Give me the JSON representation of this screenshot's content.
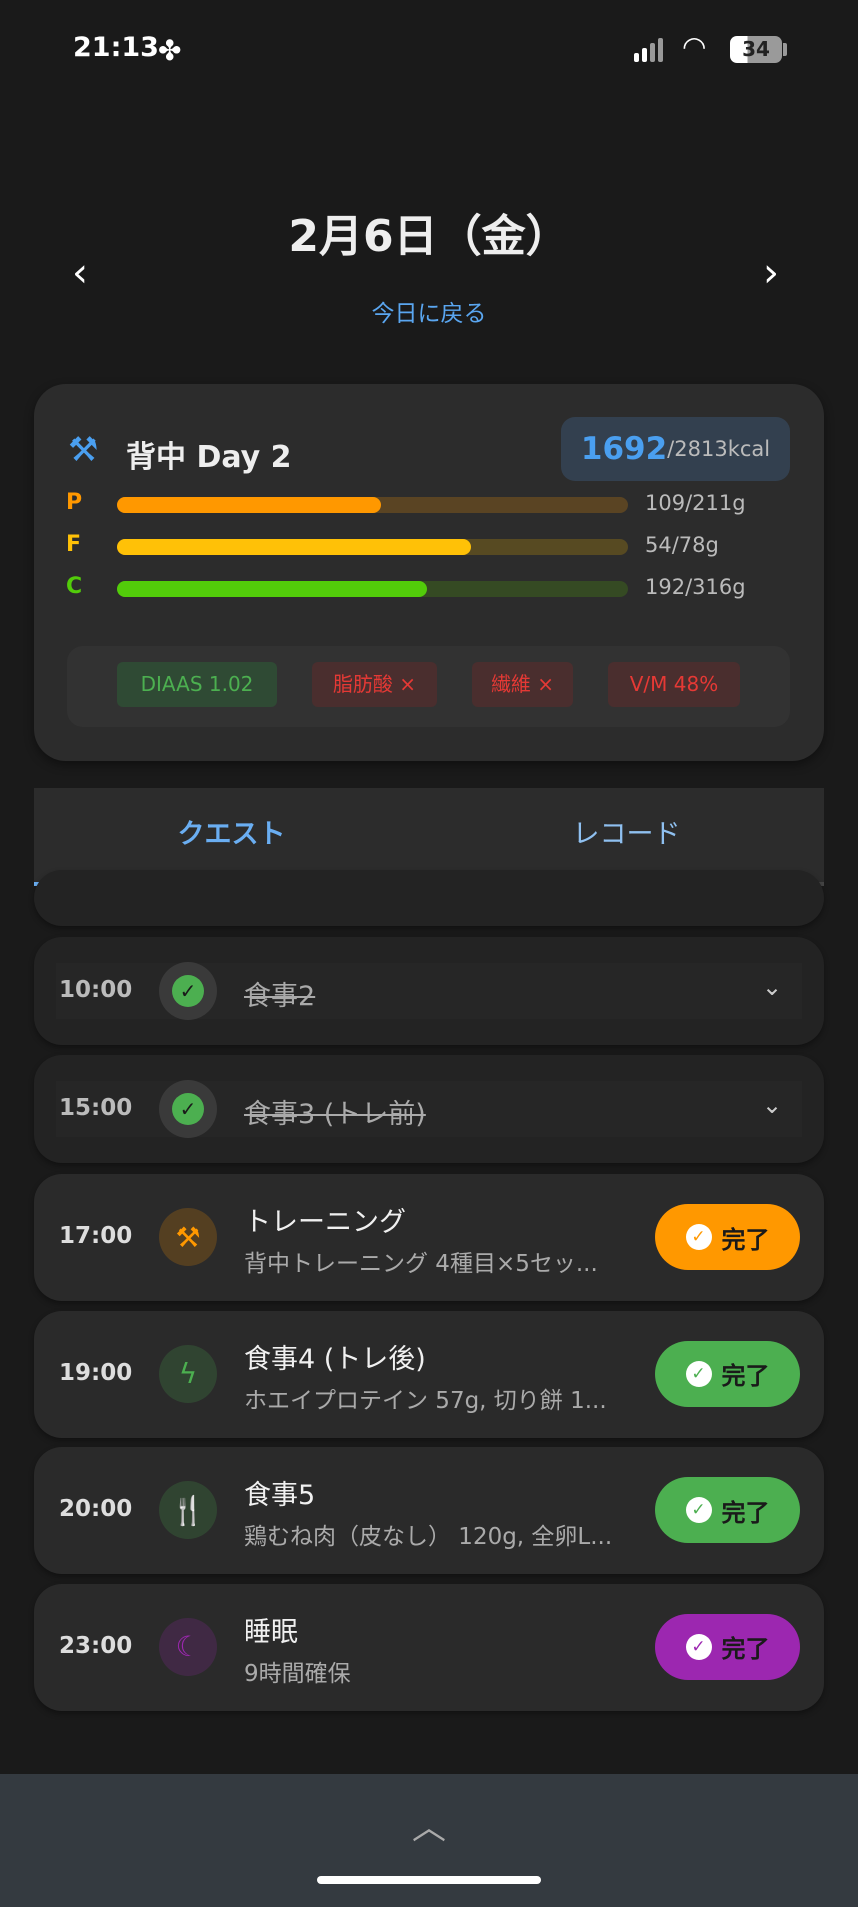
{
  "status": {
    "time": "21:13",
    "battery": "34"
  },
  "header": {
    "date": "2月6日（金）",
    "today_link": "今日に戻る"
  },
  "summary": {
    "title": "背中 Day 2",
    "kcal_current": "1692",
    "kcal_target": "/2813kcal",
    "macros": [
      {
        "label": "P",
        "text": "109/211g",
        "value": 109,
        "target": 211,
        "color": "#ff9800",
        "track": "#5a4423"
      },
      {
        "label": "F",
        "text": "54/78g",
        "value": 54,
        "target": 78,
        "color": "#ffc107",
        "track": "#574a22"
      },
      {
        "label": "C",
        "text": "192/316g",
        "value": 192,
        "target": 316,
        "color": "#52cc0a",
        "track": "#354a23"
      }
    ],
    "tags": [
      {
        "text": "DIAAS 1.02",
        "status": "good"
      },
      {
        "text": "脂肪酸 ×",
        "status": "bad"
      },
      {
        "text": "繊維 ×",
        "status": "bad"
      },
      {
        "text": "V/M 48%",
        "status": "bad"
      }
    ]
  },
  "tabs": [
    {
      "label": "クエスト",
      "active": true
    },
    {
      "label": "レコード",
      "active": false
    }
  ],
  "quests_done": [
    {
      "time": "10:00",
      "title": "食事2"
    },
    {
      "time": "15:00",
      "title": "食事3 (トレ前)"
    }
  ],
  "quests": [
    {
      "time": "17:00",
      "title": "トレーニング",
      "subtitle": "背中トレーニング 4種目×5セッ...",
      "icon": "dumbbell-icon",
      "color": "#ff9800",
      "button": "完了"
    },
    {
      "time": "19:00",
      "title": "食事4 (トレ後)",
      "subtitle": "ホエイプロテイン 57g, 切り餅 1...",
      "icon": "lightning-icon",
      "color": "#4caf50",
      "button": "完了"
    },
    {
      "time": "20:00",
      "title": "食事5",
      "subtitle": "鶏むね肉（皮なし） 120g, 全卵L...",
      "icon": "fork-knife-icon",
      "color": "#4caf50",
      "button": "完了"
    },
    {
      "time": "23:00",
      "title": "睡眠",
      "subtitle": "9時間確保",
      "icon": "moon-icon",
      "color": "#9c27b0",
      "button": "完了"
    }
  ]
}
